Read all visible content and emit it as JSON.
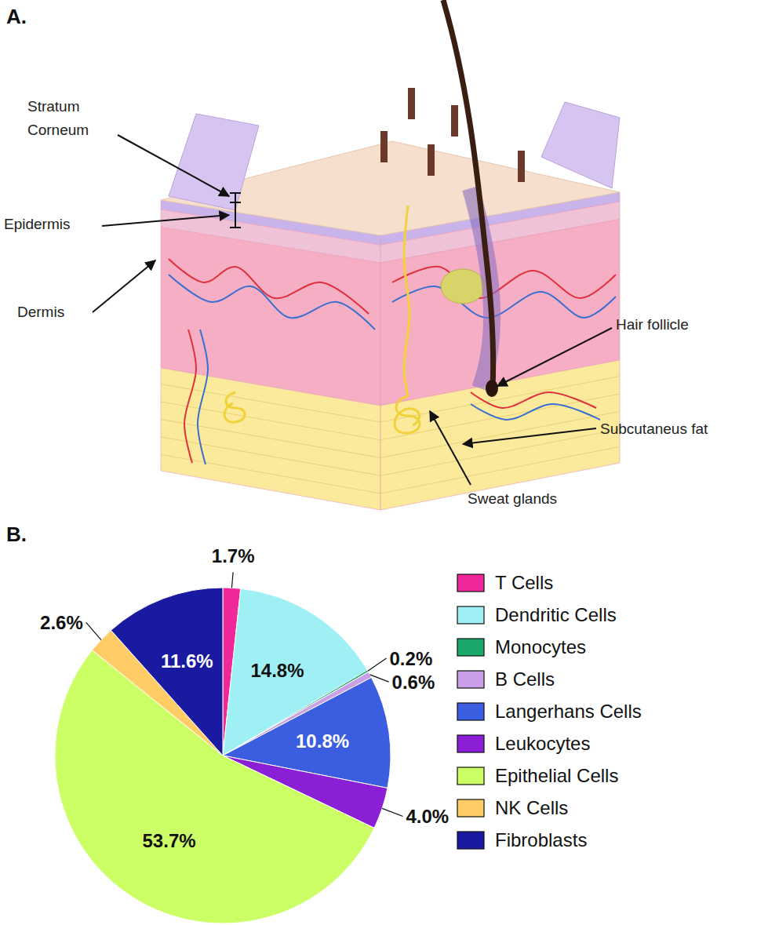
{
  "diagram": {
    "panel_label": "A.",
    "labels": [
      {
        "lines": [
          "Stratum",
          "Corneum"
        ]
      },
      {
        "lines": [
          "Epidermis"
        ]
      },
      {
        "lines": [
          "Dermis"
        ]
      },
      {
        "lines": [
          "Hair follicle"
        ]
      },
      {
        "lines": [
          "Subcutaneus fat"
        ]
      },
      {
        "lines": [
          "Sweat glands"
        ]
      }
    ]
  },
  "chart_data": {
    "type": "pie",
    "title": "B.",
    "categories": [
      "T Cells",
      "Dendritic Cells",
      "Monocytes",
      "B Cells",
      "Langerhans Cells",
      "Leukocytes",
      "Epithelial Cells",
      "NK Cells",
      "Fibroblasts"
    ],
    "values": [
      1.7,
      14.8,
      0.2,
      0.6,
      10.8,
      4.0,
      53.7,
      2.6,
      11.6
    ],
    "value_labels": [
      "1.7%",
      "14.8%",
      "0.2%",
      "0.6%",
      "10.8%",
      "4.0%",
      "53.7%",
      "2.6%",
      "11.6%"
    ],
    "colors": [
      "#f0289a",
      "#9ff0f5",
      "#1aa86a",
      "#c9a0e8",
      "#3b5ee0",
      "#8a1fd6",
      "#ccff66",
      "#ffcc66",
      "#1a1aa0"
    ],
    "data_labels": true,
    "legend": "right"
  }
}
